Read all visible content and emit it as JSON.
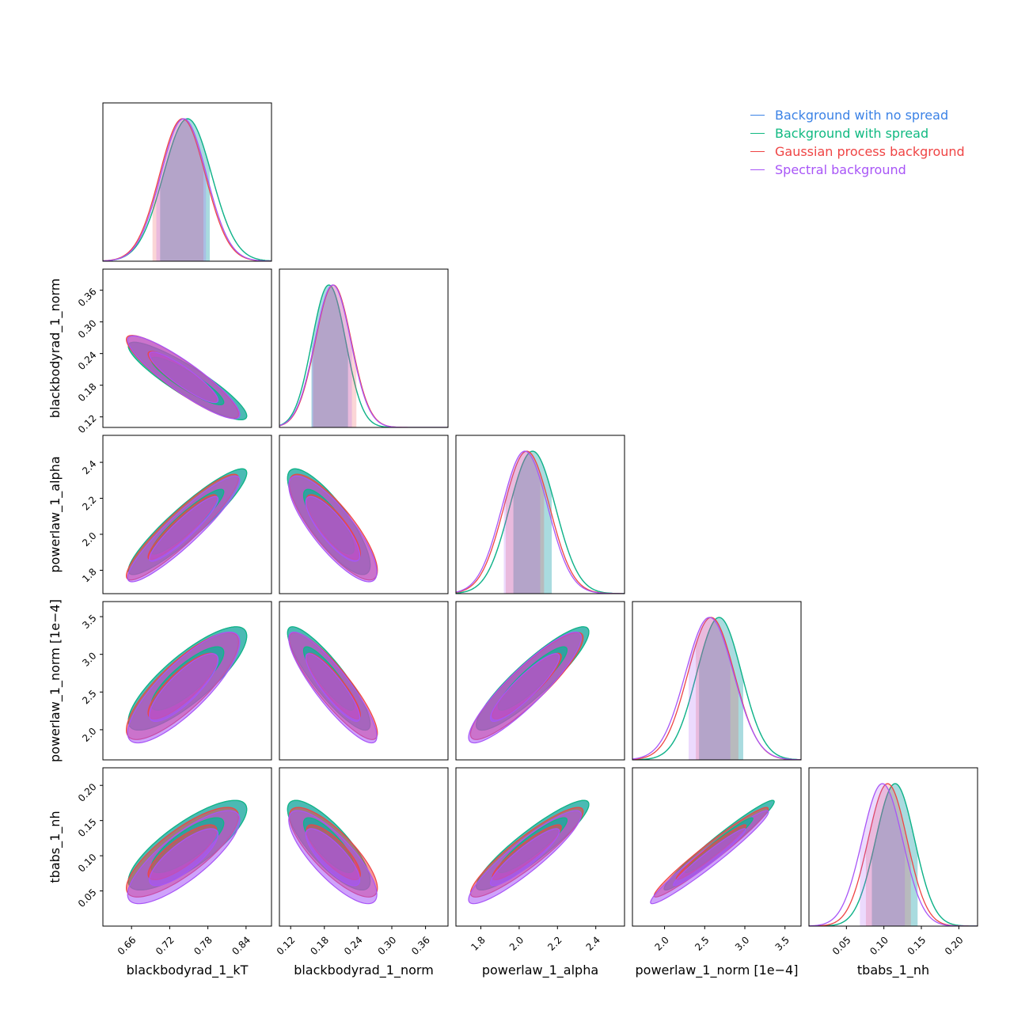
{
  "chart_data": {
    "type": "corner",
    "series": [
      {
        "name": "Background with no spread",
        "color": "#3b82e6"
      },
      {
        "name": "Background with spread",
        "color": "#10b981"
      },
      {
        "name": "Gaussian process background",
        "color": "#ef4444"
      },
      {
        "name": "Spectral background",
        "color": "#a855f7"
      }
    ],
    "legend_position": "top-right",
    "parameters": [
      {
        "label": "blackbodyrad_1_kT",
        "range": [
          0.615,
          0.88
        ],
        "ticks": [
          0.66,
          0.72,
          0.78,
          0.84
        ],
        "tick_labels": [
          "0.66",
          "0.72",
          "0.78",
          "0.84"
        ],
        "means": [
          0.748,
          0.748,
          0.74,
          0.742
        ],
        "sds": [
          0.038,
          0.038,
          0.036,
          0.036
        ],
        "intervals": [
          [
            0.705,
            0.783
          ],
          [
            0.705,
            0.783
          ],
          [
            0.693,
            0.773
          ],
          [
            0.699,
            0.777
          ]
        ]
      },
      {
        "label": "blackbodyrad_1_norm",
        "range": [
          0.1,
          0.4
        ],
        "ticks": [
          0.12,
          0.18,
          0.24,
          0.3,
          0.36
        ],
        "tick_labels": [
          "0.12",
          "0.18",
          "0.24",
          "0.30",
          "0.36"
        ],
        "means": [
          0.188,
          0.188,
          0.196,
          0.195
        ],
        "sds": [
          0.03,
          0.03,
          0.032,
          0.032
        ],
        "intervals": [
          [
            0.157,
            0.222
          ],
          [
            0.157,
            0.222
          ],
          [
            0.16,
            0.237
          ],
          [
            0.158,
            0.229
          ]
        ]
      },
      {
        "label": "powerlaw_1_alpha",
        "range": [
          1.67,
          2.55
        ],
        "ticks": [
          1.8,
          2.0,
          2.2,
          2.4
        ],
        "tick_labels": [
          "1.8",
          "2.0",
          "2.2",
          "2.4"
        ],
        "means": [
          2.07,
          2.07,
          2.04,
          2.03
        ],
        "sds": [
          0.12,
          0.12,
          0.12,
          0.12
        ],
        "intervals": [
          [
            1.97,
            2.17
          ],
          [
            1.97,
            2.17
          ],
          [
            1.93,
            2.13
          ],
          [
            1.92,
            2.11
          ]
        ]
      },
      {
        "label": "powerlaw_1_norm [1e−4]",
        "range": [
          1.6,
          3.7
        ],
        "ticks": [
          2.0,
          2.5,
          3.0,
          3.5
        ],
        "tick_labels": [
          "2.0",
          "2.5",
          "3.0",
          "3.5"
        ],
        "means": [
          2.68,
          2.68,
          2.58,
          2.56
        ],
        "sds": [
          0.28,
          0.28,
          0.29,
          0.3
        ],
        "intervals": [
          [
            2.43,
            2.98
          ],
          [
            2.43,
            2.98
          ],
          [
            2.39,
            2.92
          ],
          [
            2.3,
            2.82
          ]
        ]
      },
      {
        "label": "tbabs_1_nh",
        "range": [
          0.0,
          0.225
        ],
        "ticks": [
          0.05,
          0.1,
          0.15,
          0.2
        ],
        "tick_labels": [
          "0.05",
          "0.10",
          "0.15",
          "0.20"
        ],
        "means": [
          0.115,
          0.115,
          0.105,
          0.098
        ],
        "sds": [
          0.026,
          0.026,
          0.026,
          0.027
        ],
        "intervals": [
          [
            0.084,
            0.145
          ],
          [
            0.084,
            0.145
          ],
          [
            0.076,
            0.136
          ],
          [
            0.068,
            0.128
          ]
        ]
      }
    ],
    "correlation_matrix": [
      [
        1.0,
        -0.9,
        0.92,
        0.82,
        0.8
      ],
      [
        -0.9,
        1.0,
        -0.82,
        -0.88,
        -0.8
      ],
      [
        0.92,
        -0.82,
        1.0,
        0.9,
        0.91
      ],
      [
        0.82,
        -0.88,
        0.9,
        1.0,
        0.97
      ],
      [
        0.8,
        -0.8,
        0.91,
        0.97,
        1.0
      ]
    ],
    "credible_levels": [
      "inner",
      "outer"
    ],
    "grid": false
  }
}
